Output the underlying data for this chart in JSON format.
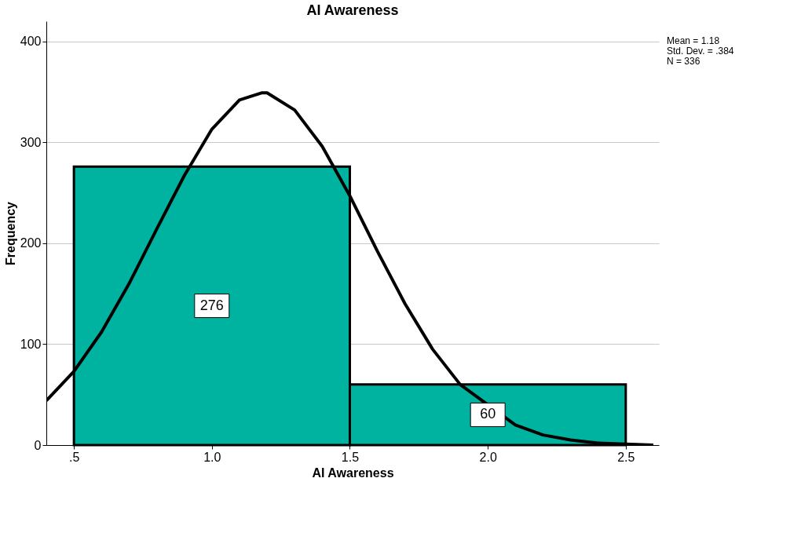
{
  "chart_data": {
    "type": "histogram",
    "title": "AI Awareness",
    "xlabel": "AI Awareness",
    "ylabel": "Frequency",
    "bins": [
      0.5,
      1.5,
      2.5
    ],
    "values": [
      276,
      60
    ],
    "color": "#00b2a0",
    "value_labels": [
      "276",
      "60"
    ],
    "series": [
      {
        "type": "line",
        "color": "#000000",
        "x": [
          0.4,
          0.5,
          0.6,
          0.7,
          0.8,
          0.9,
          1.0,
          1.1,
          1.18,
          1.2,
          1.3,
          1.4,
          1.5,
          1.6,
          1.7,
          1.8,
          1.9,
          2.1,
          2.2,
          2.3,
          2.4,
          2.5,
          2.6
        ],
        "values": [
          44,
          73,
          112,
          160,
          214,
          267,
          313,
          342,
          349,
          349,
          332,
          296,
          247,
          192,
          140,
          95,
          60,
          20,
          10,
          5,
          2,
          1,
          0
        ]
      }
    ],
    "xlim": [
      0.4,
      2.62
    ],
    "ylim": [
      0,
      420
    ],
    "xticks": [
      {
        "value": 0.5,
        "label": ".5"
      },
      {
        "value": 1.0,
        "label": "1.0"
      },
      {
        "value": 1.5,
        "label": "1.5"
      },
      {
        "value": 2.0,
        "label": "2.0"
      },
      {
        "value": 2.5,
        "label": "2.5"
      }
    ],
    "yticks": [
      0,
      100,
      200,
      300,
      400
    ],
    "grid": "y",
    "annotations": [
      "Mean = 1.18",
      "Std. Dev. = .384",
      "N = 336"
    ]
  }
}
